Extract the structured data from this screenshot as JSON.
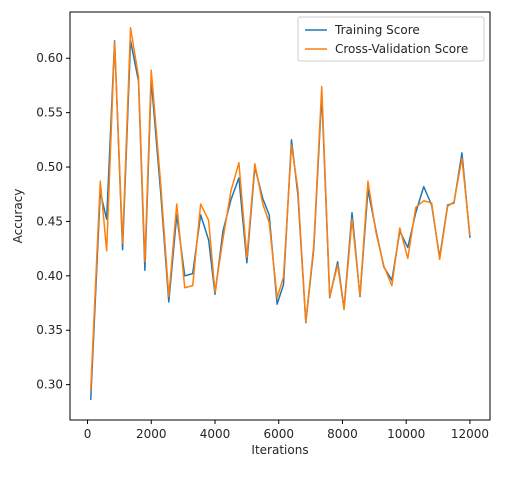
{
  "chart_data": {
    "type": "line",
    "title": "",
    "xlabel": "Iterations",
    "ylabel": "Accuracy",
    "xlim": [
      -550,
      12630
    ],
    "ylim": [
      0.2675,
      0.6425
    ],
    "xticks": [
      0,
      2000,
      4000,
      6000,
      8000,
      10000,
      12000
    ],
    "xtick_labels": [
      "0",
      "2000",
      "4000",
      "6000",
      "8000",
      "10000",
      "12000"
    ],
    "yticks": [
      0.3,
      0.35,
      0.4,
      0.45,
      0.5,
      0.55,
      0.6
    ],
    "ytick_labels": [
      "0.30",
      "0.35",
      "0.40",
      "0.45",
      "0.50",
      "0.55",
      "0.60"
    ],
    "grid": false,
    "legend_position": "top-right",
    "x": [
      100,
      400,
      600,
      850,
      1100,
      1350,
      1600,
      1800,
      2000,
      2300,
      2550,
      2800,
      3050,
      3300,
      3550,
      3800,
      4000,
      4250,
      4500,
      4750,
      5000,
      5250,
      5500,
      5700,
      5950,
      6150,
      6400,
      6600,
      6850,
      7100,
      7350,
      7600,
      7850,
      8050,
      8300,
      8550,
      8800,
      9050,
      9300,
      9550,
      9800,
      10050,
      10300,
      10550,
      10800,
      11050,
      11300,
      11500,
      11750,
      12000
    ],
    "series": [
      {
        "name": "Training Score",
        "color": "#1f77b4",
        "values": [
          0.286,
          0.477,
          0.452,
          0.616,
          0.424,
          0.616,
          0.579,
          0.405,
          0.58,
          0.475,
          0.376,
          0.456,
          0.4,
          0.402,
          0.456,
          0.433,
          0.383,
          0.441,
          0.47,
          0.49,
          0.412,
          0.5,
          0.471,
          0.456,
          0.374,
          0.392,
          0.525,
          0.475,
          0.357,
          0.425,
          0.567,
          0.38,
          0.413,
          0.37,
          0.458,
          0.381,
          0.479,
          0.442,
          0.408,
          0.396,
          0.441,
          0.426,
          0.458,
          0.482,
          0.465,
          0.417,
          0.465,
          0.467,
          0.513,
          0.435
        ]
      },
      {
        "name": "Cross-Validation Score",
        "color": "#ff7f0e",
        "values": [
          0.295,
          0.487,
          0.423,
          0.615,
          0.43,
          0.628,
          0.583,
          0.413,
          0.589,
          0.483,
          0.381,
          0.466,
          0.389,
          0.391,
          0.466,
          0.451,
          0.385,
          0.434,
          0.478,
          0.504,
          0.417,
          0.503,
          0.466,
          0.449,
          0.38,
          0.399,
          0.52,
          0.48,
          0.358,
          0.428,
          0.574,
          0.381,
          0.41,
          0.369,
          0.452,
          0.382,
          0.487,
          0.44,
          0.409,
          0.391,
          0.444,
          0.416,
          0.463,
          0.469,
          0.467,
          0.415,
          0.464,
          0.468,
          0.508,
          0.437
        ]
      }
    ]
  }
}
